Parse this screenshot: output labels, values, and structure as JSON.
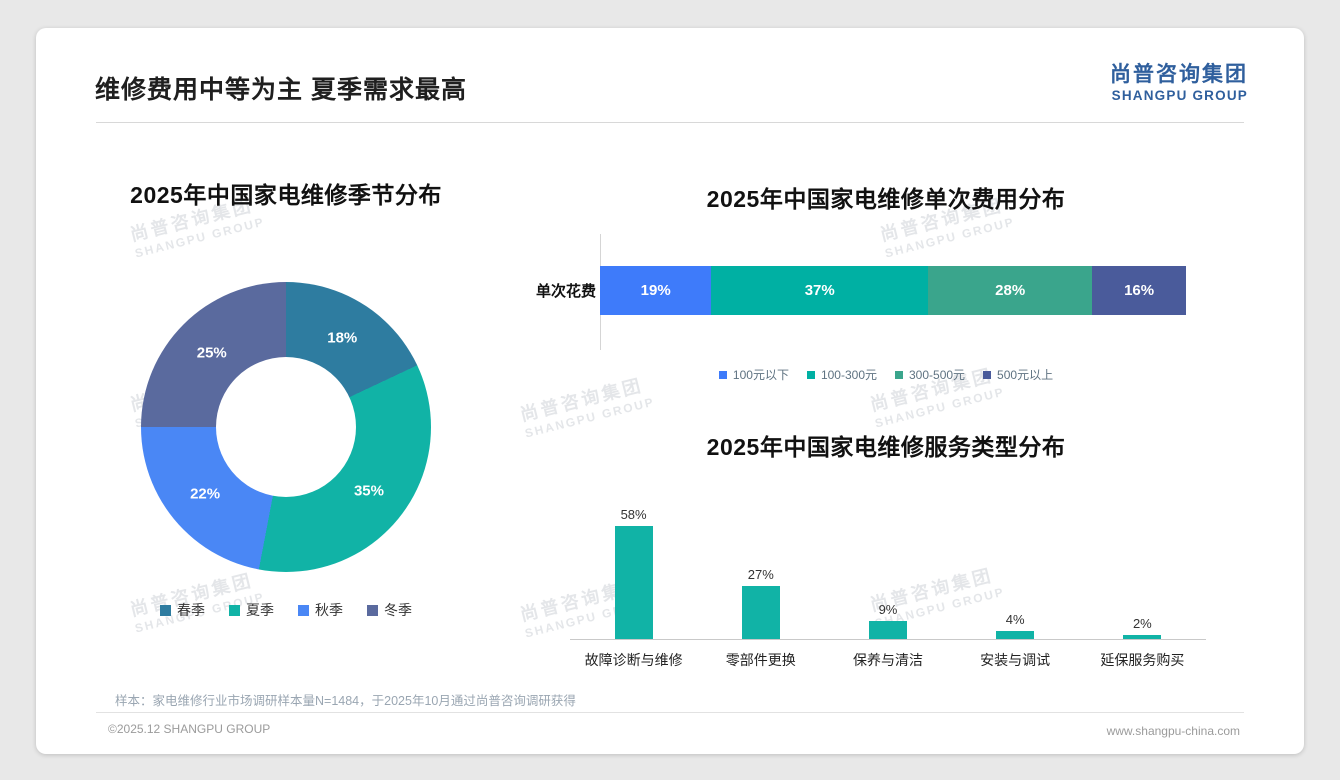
{
  "page": {
    "title": "维修费用中等为主 夏季需求最高",
    "logo": {
      "cn": "尚普咨询集团",
      "en": "SHANGPU GROUP"
    },
    "watermark": {
      "line1": "尚普咨询集团",
      "line2": "SHANGPU GROUP"
    },
    "source_note": "样本：家电维修行业市场调研样本量N=1484，于2025年10月通过尚普咨询调研获得",
    "footer_left": "©2025.12 SHANGPU GROUP",
    "footer_right": "www.shangpu-china.com"
  },
  "chart_data": [
    {
      "type": "pie",
      "donut": true,
      "title": "2025年中国家电维修季节分布",
      "categories": [
        "春季",
        "夏季",
        "秋季",
        "冬季"
      ],
      "values": [
        18,
        35,
        22,
        25
      ],
      "labels": [
        "18%",
        "35%",
        "22%",
        "25%"
      ],
      "colors": [
        "#2e7ca0",
        "#11b3a6",
        "#4a87f5",
        "#5a6a9e"
      ],
      "legend_position": "bottom",
      "unit": "%"
    },
    {
      "type": "bar",
      "orientation": "horizontal-stacked",
      "title": "2025年中国家电维修单次费用分布",
      "row_label": "单次花费",
      "categories": [
        "100元以下",
        "100-300元",
        "300-500元",
        "500元以上"
      ],
      "values": [
        19,
        37,
        28,
        16
      ],
      "labels": [
        "19%",
        "37%",
        "28%",
        "16%"
      ],
      "colors": [
        "#3e7bfa",
        "#00b0a3",
        "#3aa58c",
        "#4a5b9b"
      ],
      "legend_position": "bottom",
      "unit": "%"
    },
    {
      "type": "bar",
      "title": "2025年中国家电维修服务类型分布",
      "categories": [
        "故障诊断与维修",
        "零部件更换",
        "保养与清洁",
        "安装与调试",
        "延保服务购买"
      ],
      "values": [
        58,
        27,
        9,
        4,
        2
      ],
      "labels": [
        "58%",
        "27%",
        "9%",
        "4%",
        "2%"
      ],
      "color": "#11b3a6",
      "ylim": [
        0,
        60
      ],
      "grid": false,
      "unit": "%"
    }
  ]
}
